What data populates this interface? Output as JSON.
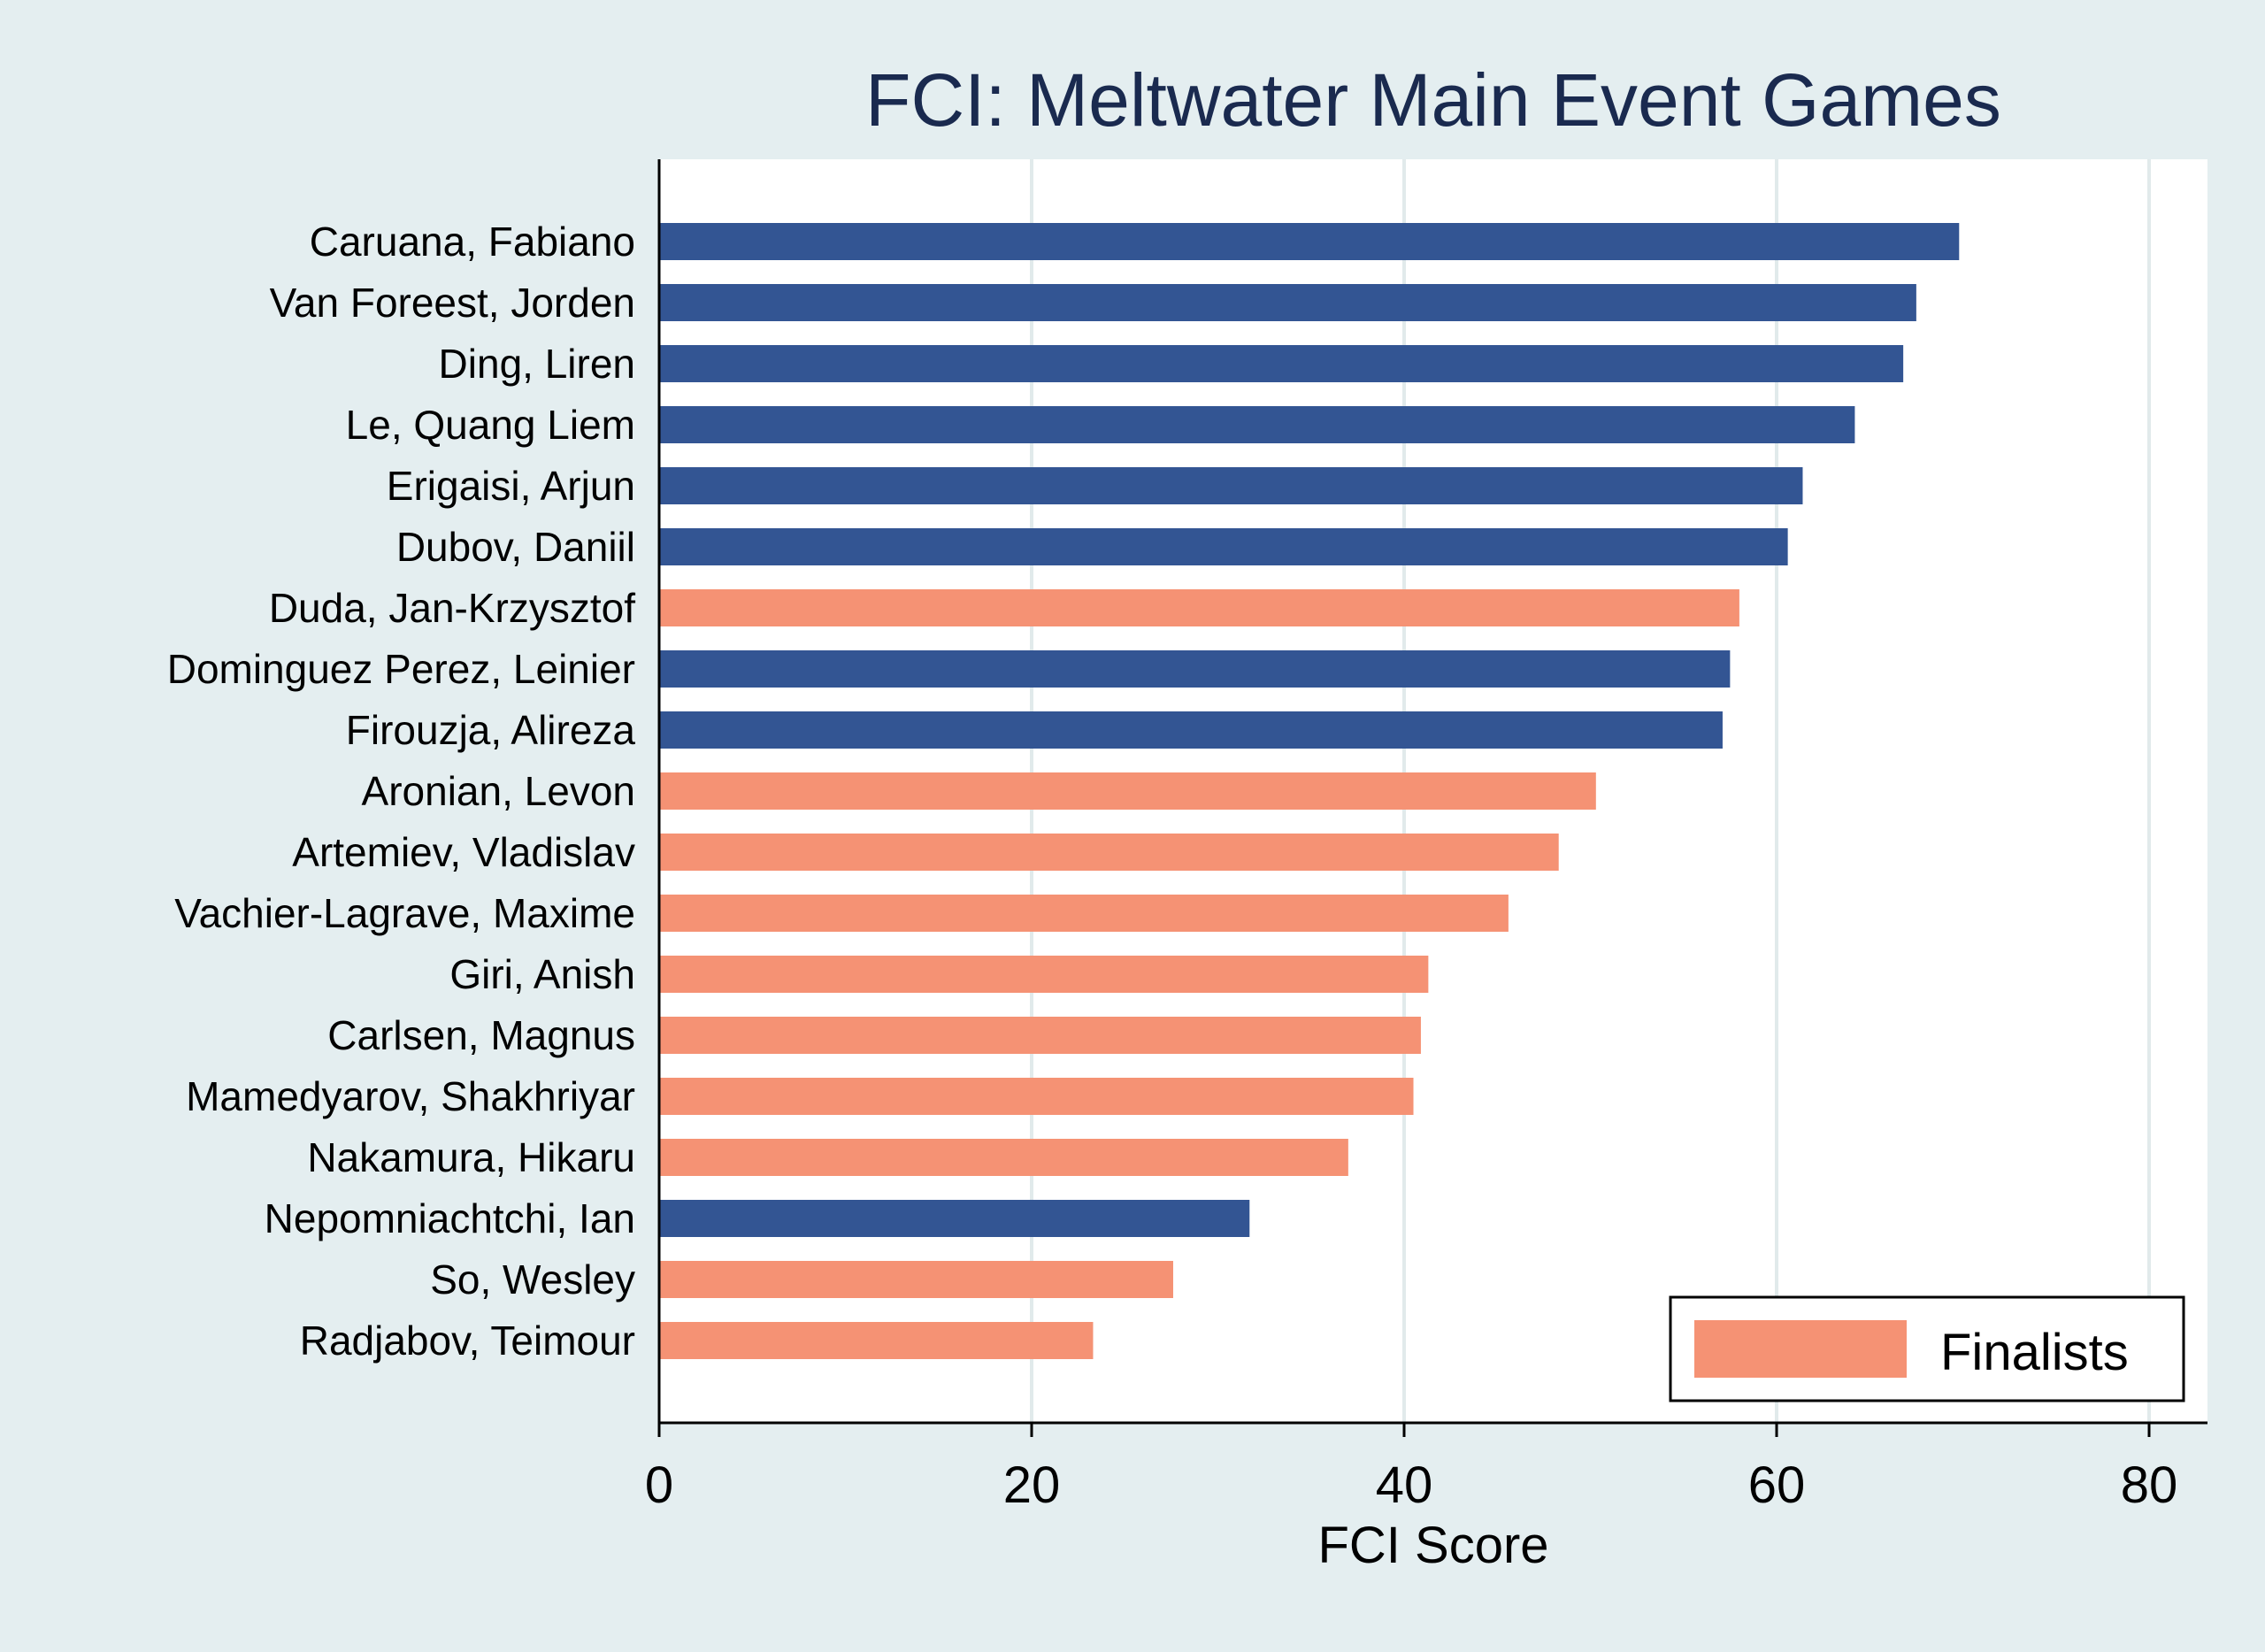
{
  "chart_data": {
    "type": "bar",
    "orientation": "horizontal",
    "title": "FCI: Meltwater Main Event Games",
    "xlabel": "FCI Score",
    "ylabel": "",
    "xlim": [
      0,
      83
    ],
    "xticks": [
      0,
      20,
      40,
      60,
      80
    ],
    "grid": true,
    "legend_position": "bottom-right",
    "colors": {
      "background": "#e4eef0",
      "plot_background": "#ffffff",
      "gridline": "#e1eaeb",
      "title": "#1a2a4f",
      "non_finalist": "#335593",
      "finalist": "#f59274"
    },
    "categories": [
      "Caruana, Fabiano",
      "Van Foreest, Jorden",
      "Ding, Liren",
      "Le, Quang Liem",
      "Erigaisi, Arjun",
      "Dubov, Daniil",
      "Duda, Jan-Krzysztof",
      "Dominguez Perez, Leinier",
      "Firouzja, Alireza",
      "Aronian, Levon",
      "Artemiev, Vladislav",
      "Vachier-Lagrave, Maxime",
      "Giri, Anish",
      "Carlsen, Magnus",
      "Mamedyarov, Shakhriyar",
      "Nakamura, Hikaru",
      "Nepomniachtchi, Ian",
      "So, Wesley",
      "Radjabov, Teimour"
    ],
    "values": [
      69.8,
      67.5,
      66.8,
      64.2,
      61.4,
      60.6,
      58.0,
      57.5,
      57.1,
      50.3,
      48.3,
      45.6,
      41.3,
      40.9,
      40.5,
      37.0,
      31.7,
      27.6,
      23.3
    ],
    "finalist": [
      false,
      false,
      false,
      false,
      false,
      false,
      true,
      false,
      false,
      true,
      true,
      true,
      true,
      true,
      true,
      true,
      false,
      true,
      true
    ],
    "legend": [
      {
        "label": "Finalists",
        "color": "#f59274"
      }
    ]
  }
}
